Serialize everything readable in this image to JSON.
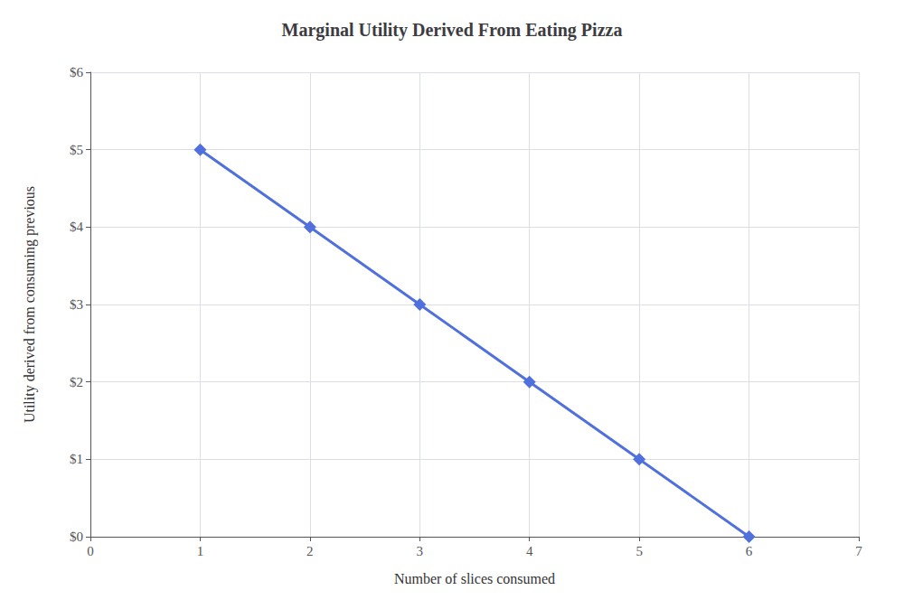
{
  "chart_data": {
    "type": "line",
    "title": "Marginal Utility Derived From Eating Pizza",
    "xlabel": "Number of slices consumed",
    "ylabel": "Utility derived from consuming previous",
    "x": [
      1,
      2,
      3,
      4,
      5,
      6
    ],
    "values": [
      5,
      4,
      3,
      2,
      1,
      0
    ],
    "marker": "diamond",
    "xlim": [
      0,
      7
    ],
    "xticks": [
      0,
      1,
      2,
      3,
      4,
      5,
      6,
      7
    ],
    "ylim": [
      0,
      6
    ],
    "yticks": [
      {
        "value": 0,
        "label": "$0"
      },
      {
        "value": 1,
        "label": "$1"
      },
      {
        "value": 2,
        "label": "$2"
      },
      {
        "value": 3,
        "label": "$3"
      },
      {
        "value": 4,
        "label": "$4"
      },
      {
        "value": 5,
        "label": "$5"
      },
      {
        "value": 6,
        "label": "$6"
      }
    ],
    "grid": true
  }
}
